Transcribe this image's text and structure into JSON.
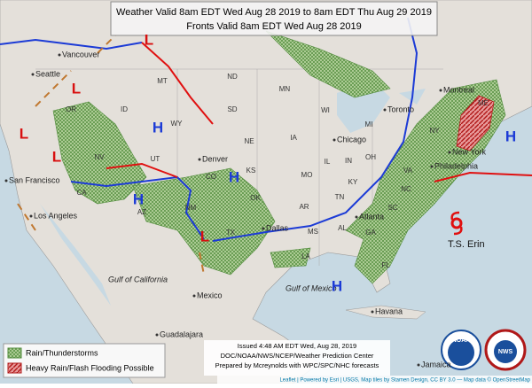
{
  "header": {
    "line1": "Weather Valid 8am EDT Wed Aug 28 2019 to 8am EDT Thu Aug 29 2019",
    "line2": "Fronts Valid 8am EDT Wed Aug 28 2019"
  },
  "legend": {
    "items": [
      {
        "label": "Rain/Thunderstorms"
      },
      {
        "label": "Heavy Rain/Flash Flooding Possible"
      }
    ]
  },
  "footer": {
    "issued": "Issued 4:48 AM EDT Wed, Aug 28, 2019",
    "agency": "DOC/NOAA/NWS/NCEP/Weather Prediction Center",
    "prepared": "Prepared by Mcreynolds with WPC/SPC/NHC forecasts",
    "attribution": "Leaflet | Powered by Esri | USGS, Map tiles by Stamen Design, CC BY 3.0 — Map data © OpenStreetMap"
  },
  "places": [
    "Vancouver",
    "Seattle",
    "San Francisco",
    "Los Angeles",
    "Denver",
    "Dallas",
    "Chicago",
    "Toronto",
    "Montreal",
    "New York",
    "Philadelphia",
    "Atlanta",
    "Havana",
    "Mexico",
    "Guadalajara",
    "Jamaica",
    "Gulf of California",
    "Gulf of Mexico"
  ],
  "states": [
    "MT",
    "ND",
    "MN",
    "SD",
    "WY",
    "ID",
    "NE",
    "IA",
    "WI",
    "MI",
    "IL",
    "IN",
    "OH",
    "NY",
    "KS",
    "MO",
    "KY",
    "TN",
    "OK",
    "AR",
    "MS",
    "AL",
    "GA",
    "SC",
    "NC",
    "VA",
    "TX",
    "NM",
    "AZ",
    "UT",
    "NV",
    "CO",
    "CA",
    "ME",
    "FL",
    "LA",
    "OR"
  ],
  "pressure_centers": [
    "H",
    "H",
    "H",
    "H",
    "H",
    "L",
    "L",
    "L",
    "L",
    "L"
  ],
  "storm": {
    "label": "T.S. Erin"
  },
  "logos": {
    "noaa": "NOAA",
    "nws": "NWS"
  }
}
